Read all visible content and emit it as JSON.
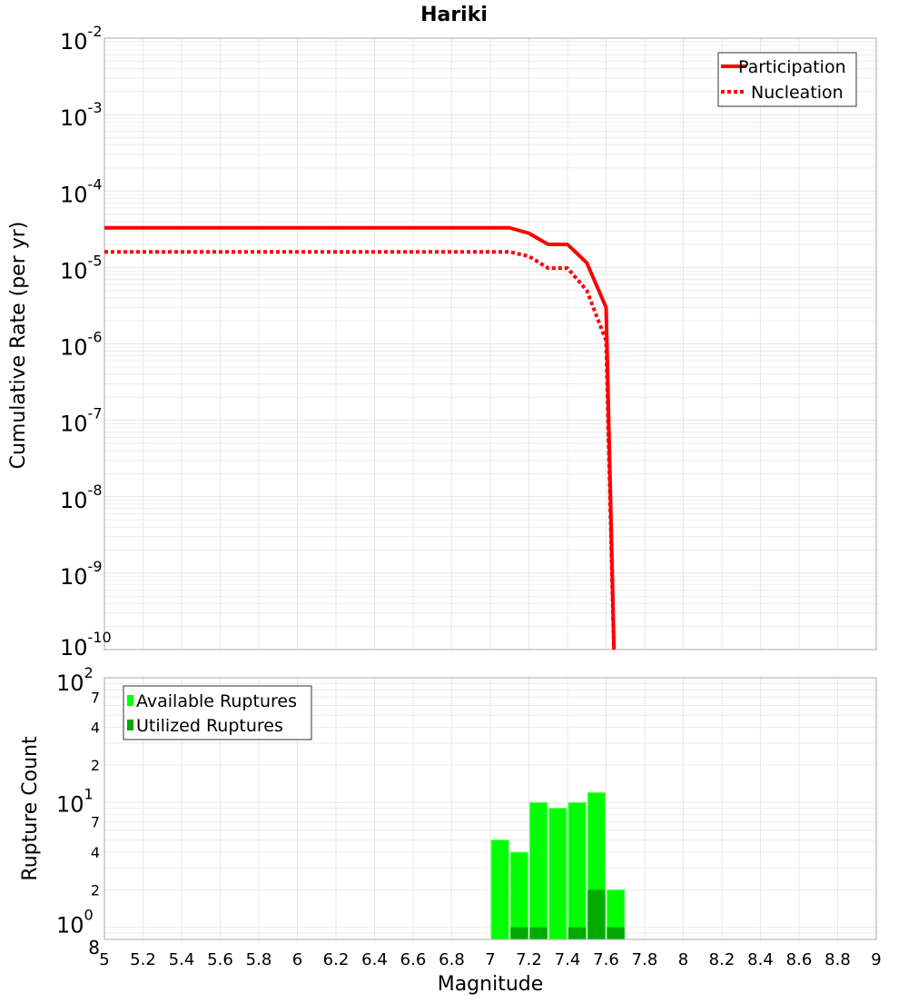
{
  "chart_data": [
    {
      "type": "line",
      "title": "Hariki",
      "xlabel": "",
      "ylabel": "Cumulative Rate (per yr)",
      "xlim": [
        5,
        9
      ],
      "ylim": [
        1e-10,
        0.01
      ],
      "yscale": "log",
      "grid": true,
      "legend_position": "top-right",
      "y_tick_exponents": [
        -10,
        -9,
        -8,
        -7,
        -6,
        -5,
        -4,
        -3,
        -2
      ],
      "series": [
        {
          "name": "Participation",
          "style": "solid",
          "color": "#ff0000",
          "x": [
            5.0,
            7.1,
            7.2,
            7.3,
            7.4,
            7.5,
            7.6,
            7.65
          ],
          "y": [
            3.3e-05,
            3.3e-05,
            2.8e-05,
            2e-05,
            2e-05,
            1.15e-05,
            3e-06,
            1e-11
          ]
        },
        {
          "name": "Nucleation",
          "style": "dotted",
          "color": "#ff0000",
          "x": [
            5.0,
            7.1,
            7.2,
            7.3,
            7.4,
            7.5,
            7.6,
            7.65
          ],
          "y": [
            1.6e-05,
            1.6e-05,
            1.4e-05,
            9.8e-06,
            9.8e-06,
            5e-06,
            1.1e-06,
            1e-11
          ]
        }
      ]
    },
    {
      "type": "bar",
      "xlabel": "Magnitude",
      "ylabel": "Rupture Count",
      "xlim": [
        5,
        9
      ],
      "ylim": [
        0.8,
        100
      ],
      "yscale": "log",
      "grid": true,
      "legend_position": "top-left",
      "x_ticks": [
        "5",
        "5.2",
        "5.4",
        "5.6",
        "5.8",
        "6",
        "6.2",
        "6.4",
        "6.6",
        "6.8",
        "7",
        "7.2",
        "7.4",
        "7.6",
        "7.8",
        "8",
        "8.2",
        "8.4",
        "8.6",
        "8.8",
        "9"
      ],
      "y_major_exponents": [
        0,
        1,
        2
      ],
      "y_minor_labels": [
        "2",
        "4",
        "7"
      ],
      "y_bottom_label": "8",
      "bin_width": 0.1,
      "categories": [
        7.05,
        7.15,
        7.25,
        7.35,
        7.45,
        7.55,
        7.65
      ],
      "series": [
        {
          "name": "Available Ruptures",
          "color": "#00ff00",
          "values": [
            5,
            4,
            10,
            9,
            10,
            12,
            2
          ]
        },
        {
          "name": "Utilized Ruptures",
          "color": "#00aa00",
          "values": [
            0,
            1,
            1,
            0,
            1,
            2,
            1
          ]
        }
      ]
    }
  ]
}
